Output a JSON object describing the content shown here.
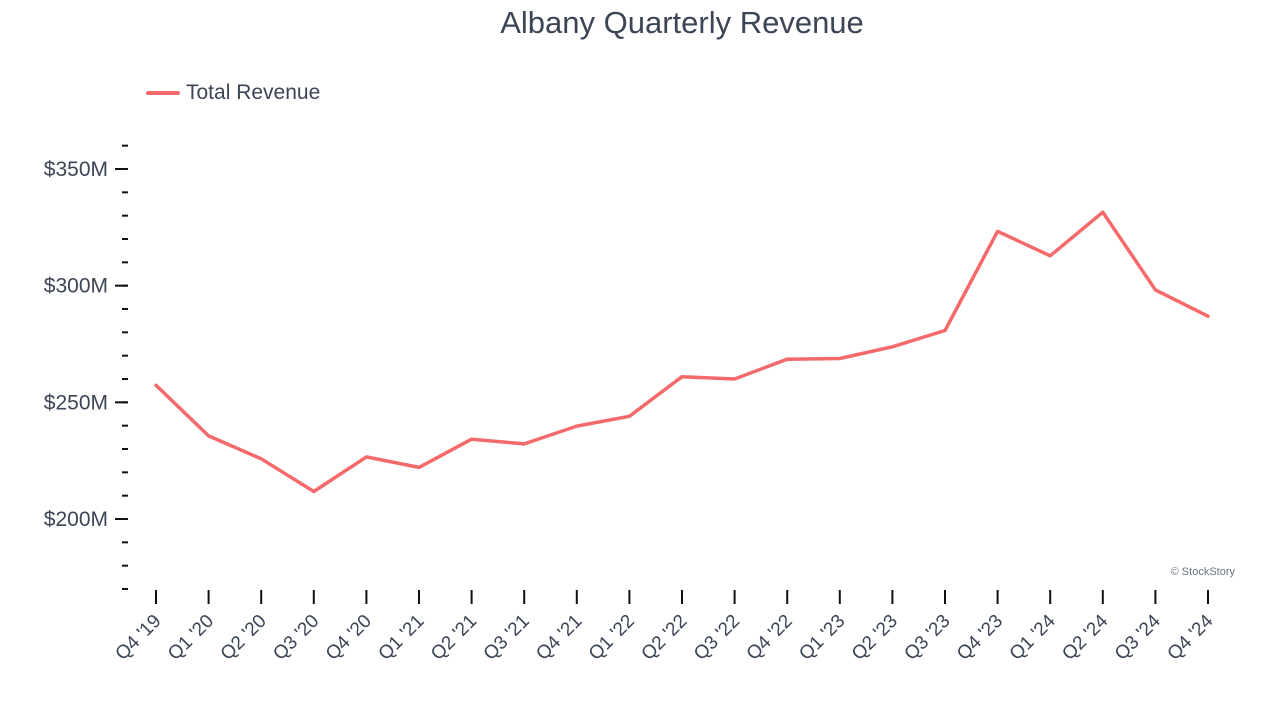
{
  "chart_data": {
    "type": "line",
    "title": "Albany Quarterly Revenue",
    "xlabel": "",
    "ylabel": "",
    "categories": [
      "Q4 '19",
      "Q1 '20",
      "Q2 '20",
      "Q3 '20",
      "Q4 '20",
      "Q1 '21",
      "Q2 '21",
      "Q3 '21",
      "Q4 '21",
      "Q1 '22",
      "Q2 '22",
      "Q3 '22",
      "Q4 '22",
      "Q1 '23",
      "Q2 '23",
      "Q3 '23",
      "Q4 '23",
      "Q1 '24",
      "Q2 '24",
      "Q3 '24",
      "Q4 '24"
    ],
    "series": [
      {
        "name": "Total Revenue",
        "color": "#f46a6b",
        "values": [
          257.3,
          235.6,
          225.8,
          211.8,
          226.6,
          222.1,
          234.2,
          232.2,
          239.8,
          244.0,
          261.0,
          260.0,
          268.5,
          268.8,
          273.8,
          280.8,
          323.3,
          312.8,
          331.5,
          298.2,
          286.9
        ]
      }
    ],
    "ylim": [
      170,
      365
    ],
    "y_ticks": [
      {
        "value": 200,
        "label": "$200M"
      },
      {
        "value": 250,
        "label": "$250M"
      },
      {
        "value": 300,
        "label": "$300M"
      },
      {
        "value": 350,
        "label": "$350M"
      }
    ],
    "y_minor_step": 10,
    "grid": false,
    "legend_position": "top-left",
    "credit": "© StockStory"
  }
}
